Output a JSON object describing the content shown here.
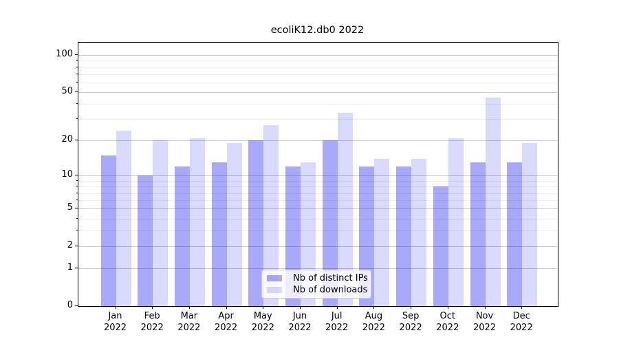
{
  "chart_data": {
    "type": "bar",
    "title": "ecoliK12.db0 2022",
    "categories": [
      "Jan 2022",
      "Feb 2022",
      "Mar 2022",
      "Apr 2022",
      "May 2022",
      "Jun 2022",
      "Jul 2022",
      "Aug 2022",
      "Sep 2022",
      "Oct 2022",
      "Nov 2022",
      "Dec 2022"
    ],
    "x_tick_line1": [
      "Jan",
      "Feb",
      "Mar",
      "Apr",
      "May",
      "Jun",
      "Jul",
      "Aug",
      "Sep",
      "Oct",
      "Nov",
      "Dec"
    ],
    "x_tick_line2": "2022",
    "series": [
      {
        "name": "Nb of distinct IPs",
        "color": "rgba(10,10,245,0.35)",
        "values": [
          15,
          10,
          12,
          13,
          20,
          12,
          20,
          12,
          12,
          8,
          13,
          13
        ]
      },
      {
        "name": "Nb of downloads",
        "color": "rgba(10,10,245,0.15)",
        "values": [
          24,
          20,
          21,
          19,
          27,
          13,
          34,
          14,
          14,
          21,
          45,
          19
        ]
      }
    ],
    "ylabel": "",
    "xlabel": "",
    "yscale": "log1p",
    "ylim": [
      0,
      126
    ],
    "yticks": [
      0,
      1,
      2,
      5,
      10,
      20,
      50,
      100
    ],
    "minor_gridlines": [
      3,
      4,
      6,
      7,
      8,
      9,
      30,
      40,
      60,
      70,
      80,
      90
    ],
    "grid": true,
    "legend_position": "lower center",
    "colors": {
      "major_grid": "#c9c9c9",
      "minor_grid": "#ececec",
      "axis": "#000000",
      "background": "#ffffff"
    }
  }
}
